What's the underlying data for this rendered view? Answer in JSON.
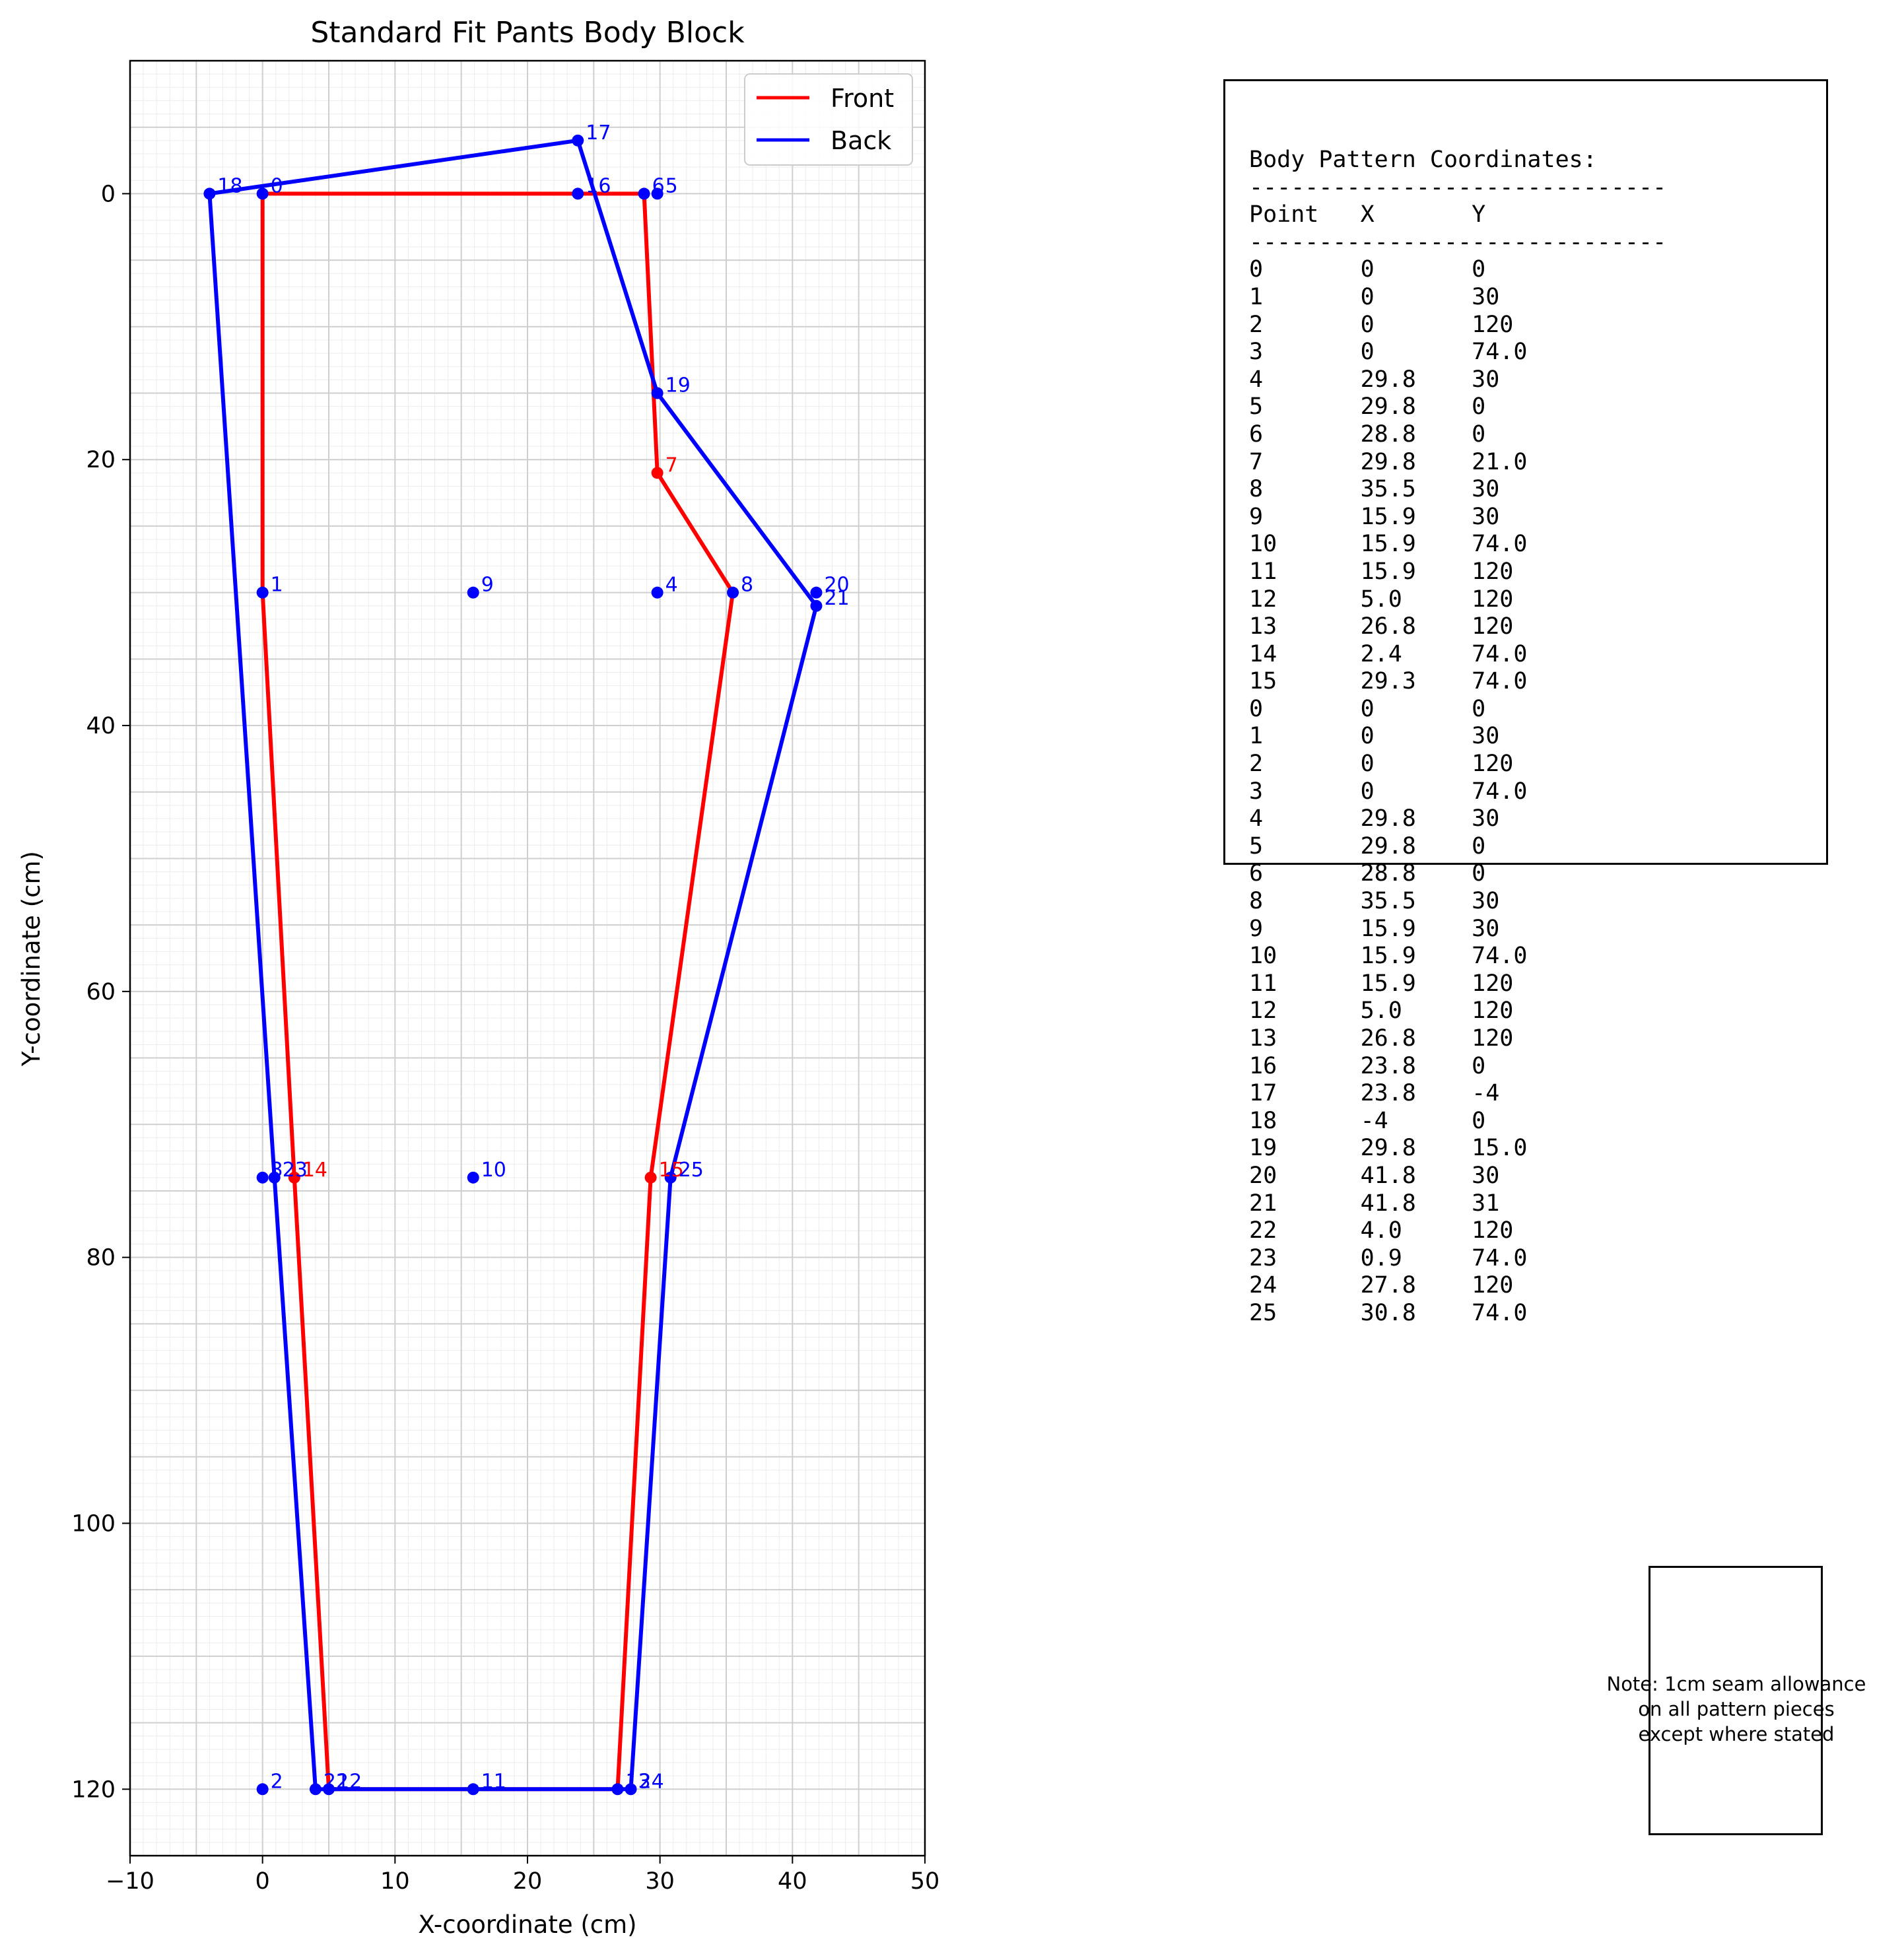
{
  "chart_data": {
    "type": "line",
    "title": "Standard Fit Pants Body Block",
    "xlabel": "X-coordinate (cm)",
    "ylabel": "Y-coordinate (cm)",
    "xlim": [
      -10,
      50
    ],
    "ylim": [
      125,
      -10
    ],
    "y_inverted": true,
    "grid": true,
    "minor_grid": true,
    "legend_position": "upper right",
    "xticks": [
      -10,
      0,
      10,
      20,
      30,
      40,
      50
    ],
    "yticks": [
      0,
      20,
      40,
      60,
      80,
      100,
      120
    ],
    "series": [
      {
        "name": "Front",
        "color": "#ff0000",
        "outline": [
          [
            0,
            0
          ],
          [
            28.8,
            0
          ],
          [
            29.8,
            21.0
          ],
          [
            35.5,
            30
          ],
          [
            29.3,
            74.0
          ],
          [
            26.8,
            120
          ],
          [
            5.0,
            120
          ],
          [
            2.4,
            74.0
          ],
          [
            0,
            30
          ],
          [
            0,
            0
          ]
        ]
      },
      {
        "name": "Back",
        "color": "#0000ff",
        "outline": [
          [
            -4,
            0
          ],
          [
            23.8,
            -4
          ],
          [
            29.8,
            15.0
          ],
          [
            41.8,
            31
          ],
          [
            30.8,
            74.0
          ],
          [
            27.8,
            120
          ],
          [
            4.0,
            120
          ],
          [
            0.9,
            74.0
          ],
          [
            -4,
            0
          ]
        ]
      }
    ],
    "points": [
      {
        "label": "0",
        "x": 0,
        "y": 0,
        "color": "#0000ff"
      },
      {
        "label": "1",
        "x": 0,
        "y": 30,
        "color": "#0000ff"
      },
      {
        "label": "2",
        "x": 0,
        "y": 120,
        "color": "#0000ff"
      },
      {
        "label": "3",
        "x": 0,
        "y": 74.0,
        "color": "#0000ff"
      },
      {
        "label": "4",
        "x": 29.8,
        "y": 30,
        "color": "#0000ff"
      },
      {
        "label": "5",
        "x": 29.8,
        "y": 0,
        "color": "#0000ff"
      },
      {
        "label": "6",
        "x": 28.8,
        "y": 0,
        "color": "#0000ff"
      },
      {
        "label": "7",
        "x": 29.8,
        "y": 21.0,
        "color": "#ff0000"
      },
      {
        "label": "8",
        "x": 35.5,
        "y": 30,
        "color": "#0000ff"
      },
      {
        "label": "9",
        "x": 15.9,
        "y": 30,
        "color": "#0000ff"
      },
      {
        "label": "10",
        "x": 15.9,
        "y": 74.0,
        "color": "#0000ff"
      },
      {
        "label": "11",
        "x": 15.9,
        "y": 120,
        "color": "#0000ff"
      },
      {
        "label": "12",
        "x": 5.0,
        "y": 120,
        "color": "#0000ff"
      },
      {
        "label": "13",
        "x": 26.8,
        "y": 120,
        "color": "#0000ff"
      },
      {
        "label": "14",
        "x": 2.4,
        "y": 74.0,
        "color": "#ff0000"
      },
      {
        "label": "15",
        "x": 29.3,
        "y": 74.0,
        "color": "#ff0000"
      },
      {
        "label": "16",
        "x": 23.8,
        "y": 0,
        "color": "#0000ff"
      },
      {
        "label": "17",
        "x": 23.8,
        "y": -4,
        "color": "#0000ff"
      },
      {
        "label": "18",
        "x": -4,
        "y": 0,
        "color": "#0000ff"
      },
      {
        "label": "19",
        "x": 29.8,
        "y": 15.0,
        "color": "#0000ff"
      },
      {
        "label": "20",
        "x": 41.8,
        "y": 30,
        "color": "#0000ff"
      },
      {
        "label": "21",
        "x": 41.8,
        "y": 31,
        "color": "#0000ff"
      },
      {
        "label": "22",
        "x": 4.0,
        "y": 120,
        "color": "#0000ff"
      },
      {
        "label": "23",
        "x": 0.9,
        "y": 74.0,
        "color": "#0000ff"
      },
      {
        "label": "24",
        "x": 27.8,
        "y": 120,
        "color": "#0000ff"
      },
      {
        "label": "25",
        "x": 30.8,
        "y": 74.0,
        "color": "#0000ff"
      }
    ]
  },
  "coordinates_panel": {
    "text": "Body Pattern Coordinates:\n------------------------------\nPoint   X       Y\n------------------------------\n0       0       0\n1       0       30\n2       0       120\n3       0       74.0\n4       29.8    30\n5       29.8    0\n6       28.8    0\n7       29.8    21.0\n8       35.5    30\n9       15.9    30\n10      15.9    74.0\n11      15.9    120\n12      5.0     120\n13      26.8    120\n14      2.4     74.0\n15      29.3    74.0\n0       0       0\n1       0       30\n2       0       120\n3       0       74.0\n4       29.8    30\n5       29.8    0\n6       28.8    0\n8       35.5    30\n9       15.9    30\n10      15.9    74.0\n11      15.9    120\n12      5.0     120\n13      26.8    120\n16      23.8    0\n17      23.8    -4\n18      -4      0\n19      29.8    15.0\n20      41.8    30\n21      41.8    31\n22      4.0     120\n23      0.9     74.0\n24      27.8    120\n25      30.8    74.0"
  },
  "note": {
    "text": "Note: 1cm seam allowance\non all pattern pieces\nexcept where stated"
  }
}
